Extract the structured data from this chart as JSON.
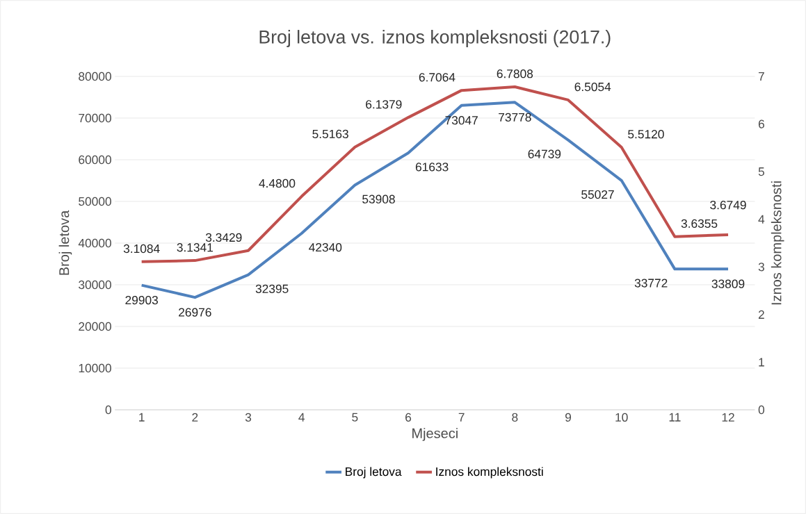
{
  "chart_data": {
    "type": "line",
    "title": "Broj letova vs. iznos kompleksnosti (2017.)",
    "xlabel": "Mjeseci",
    "ylabel": "Broj letova",
    "y2label": "Iznos kompleksnosti",
    "categories": [
      "1",
      "2",
      "3",
      "4",
      "5",
      "6",
      "7",
      "8",
      "9",
      "10",
      "11",
      "12"
    ],
    "series": [
      {
        "name": "Broj letova",
        "color": "#4f81bd",
        "values": [
          29903,
          26976,
          32395,
          42340,
          53908,
          61633,
          73047,
          73778,
          64739,
          55027,
          33772,
          33809
        ],
        "value_labels": [
          "29903",
          "26976",
          "32395",
          "42340",
          "53908",
          "61633",
          "73047",
          "73778",
          "64739",
          "55027",
          "33772",
          "33809"
        ]
      },
      {
        "name": "Iznos kompleksnosti",
        "color": "#c0504d",
        "axis": "y2",
        "values": [
          3.1084,
          3.1341,
          3.3429,
          4.48,
          5.5163,
          6.1379,
          6.7064,
          6.7808,
          6.5054,
          5.512,
          3.6355,
          3.6749
        ],
        "value_labels": [
          "3.1084",
          "3.1341",
          "3.3429",
          "4.4800",
          "5.5163",
          "6.1379",
          "6.7064",
          "6.7808",
          "6.5054",
          "5.5120",
          "3.6355",
          "3.6749"
        ]
      }
    ],
    "ylim": [
      0,
      80000
    ],
    "yticks": [
      0,
      10000,
      20000,
      30000,
      40000,
      50000,
      60000,
      70000,
      80000
    ],
    "y2lim": [
      0,
      7
    ],
    "y2ticks": [
      0,
      1,
      2,
      3,
      4,
      5,
      6,
      7
    ],
    "grid": "y",
    "legend": "bottom",
    "marker": "none",
    "line_style": "solid"
  }
}
